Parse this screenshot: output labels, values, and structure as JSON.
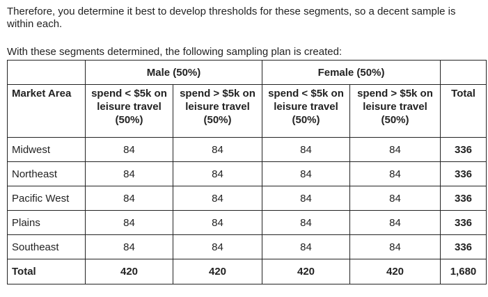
{
  "paragraphs": [
    "Therefore, you determine it best to develop thresholds for these segments, so a decent sample is within each.",
    "With these segments determined, the following sampling plan is created:"
  ],
  "table": {
    "header_groups": [
      "Male (50%)",
      "Female (50%)"
    ],
    "columns": [
      "Market Area",
      "spend < $5k on leisure travel (50%)",
      "spend > $5k on leisure travel (50%)",
      "spend < $5k on leisure travel (50%)",
      "spend > $5k on leisure travel (50%)",
      "Total"
    ],
    "rows": [
      [
        "Midwest",
        84,
        84,
        84,
        84,
        336
      ],
      [
        "Northeast",
        84,
        84,
        84,
        84,
        336
      ],
      [
        "Pacific West",
        84,
        84,
        84,
        84,
        336
      ],
      [
        "Plains",
        84,
        84,
        84,
        84,
        336
      ],
      [
        "Southeast",
        84,
        84,
        84,
        84,
        336
      ]
    ],
    "total_row": [
      "Total",
      420,
      420,
      420,
      420,
      "1,680"
    ]
  }
}
